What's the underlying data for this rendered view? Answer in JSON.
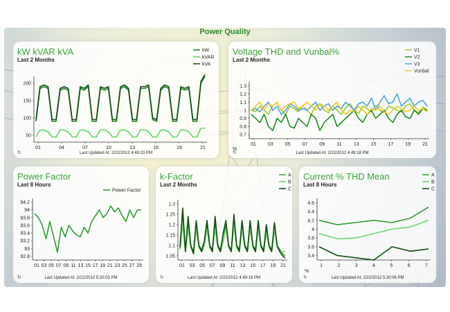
{
  "dashboard_title": "Power Quality",
  "panels": [
    {
      "title": "kW kVAR kVA",
      "subtitle": "Last 2 Months",
      "updated": "Last Updated At: 2/22/2012 4:49:23 PM",
      "chart_data": {
        "type": "line",
        "x_ticks": [
          "01",
          "04",
          "07",
          "10",
          "13",
          "16",
          "19",
          "21"
        ],
        "y_ticks": [
          "50",
          "100",
          "150",
          "200"
        ],
        "ylim": [
          30,
          220
        ],
        "series": [
          {
            "name": "kW",
            "color": "#1f7a1f",
            "values": [
              90,
              185,
              190,
              185,
              90,
              90,
              180,
              185,
              180,
              90,
              90,
              185,
              180,
              190,
              90,
              90,
              185,
              180,
              185,
              90,
              90,
              185,
              190,
              180,
              90,
              90,
              185,
              185,
              190,
              95,
              90,
              180,
              190,
              185,
              90,
              90,
              185,
              180,
              185,
              90,
              90,
              200,
              220
            ]
          },
          {
            "name": "kVAR",
            "color": "#5cd65c",
            "values": [
              45,
              65,
              65,
              60,
              45,
              45,
              65,
              65,
              60,
              45,
              45,
              65,
              65,
              60,
              45,
              45,
              65,
              65,
              60,
              45,
              45,
              65,
              65,
              60,
              45,
              45,
              65,
              65,
              60,
              45,
              45,
              65,
              65,
              60,
              45,
              45,
              65,
              65,
              60,
              45,
              45,
              70,
              70
            ]
          },
          {
            "name": "kVA",
            "color": "#0d4d0d",
            "values": [
              95,
              190,
              195,
              190,
              95,
              95,
              185,
              190,
              185,
              95,
              95,
              190,
              185,
              195,
              95,
              95,
              190,
              185,
              190,
              95,
              95,
              190,
              195,
              185,
              95,
              95,
              190,
              190,
              195,
              100,
              95,
              185,
              195,
              190,
              95,
              95,
              190,
              185,
              190,
              95,
              95,
              205,
              225
            ]
          }
        ]
      }
    },
    {
      "title": "Voltage THD and Vunbal%",
      "subtitle": "Last 2 Months",
      "updated": "Last Updated At: 2/22/2012 4:49:18 PM",
      "unit": "%",
      "chart_data": {
        "type": "line",
        "x_ticks": [
          "01",
          "03",
          "05",
          "07",
          "09",
          "11",
          "13",
          "15",
          "17",
          "19",
          "21"
        ],
        "y_ticks": [
          "0.7",
          "0.8",
          "0.9",
          "1",
          "1.1",
          "1.2",
          "1.3"
        ],
        "ylim": [
          0.65,
          1.35
        ],
        "series": [
          {
            "name": "V1",
            "color": "#9ccc2a",
            "values": [
              1.0,
              0.98,
              1.05,
              1.0,
              0.95,
              1.05,
              1.1,
              1.0,
              0.95,
              1.05,
              1.02,
              0.98,
              1.06,
              1.0,
              0.95,
              1.05,
              1.08,
              1.0,
              0.97,
              1.05,
              1.0,
              0.95,
              1.03,
              1.08,
              1.0,
              0.96,
              1.05,
              1.02,
              0.98,
              1.06,
              1.0,
              0.97,
              1.05,
              1.03,
              1.0,
              0.98,
              1.05,
              1.08,
              1.0,
              0.97,
              1.04,
              1.0
            ]
          },
          {
            "name": "V2",
            "color": "#1e8c1e",
            "values": [
              0.95,
              0.9,
              0.85,
              0.95,
              0.8,
              0.75,
              0.9,
              0.85,
              0.95,
              0.8,
              0.78,
              0.9,
              0.85,
              0.8,
              0.95,
              0.9,
              0.75,
              0.85,
              0.9,
              0.95,
              0.8,
              0.85,
              0.9,
              0.95,
              1.0,
              0.9,
              0.85,
              0.95,
              1.0,
              0.9,
              0.95,
              1.0,
              0.9,
              0.85,
              0.95,
              1.0,
              0.92,
              0.9,
              1.0,
              0.95,
              1.02,
              1.0
            ]
          },
          {
            "name": "V3",
            "color": "#4aa3e0",
            "values": [
              1.0,
              1.02,
              0.98,
              1.05,
              1.1,
              1.0,
              1.05,
              0.95,
              1.0,
              1.08,
              1.05,
              1.0,
              1.02,
              1.0,
              1.05,
              1.1,
              1.0,
              1.05,
              1.08,
              1.0,
              1.05,
              1.02,
              1.1,
              1.05,
              1.0,
              1.08,
              1.1,
              1.05,
              1.15,
              1.0,
              1.1,
              1.18,
              1.08,
              1.1,
              1.2,
              1.05,
              1.1,
              1.15,
              1.05,
              1.1,
              1.12,
              1.05
            ]
          },
          {
            "name": "Vunbal",
            "color": "#f2c81e",
            "values": [
              1.0,
              1.05,
              1.1,
              1.0,
              1.08,
              1.05,
              1.1,
              1.0,
              1.05,
              1.08,
              1.1,
              1.02,
              1.05,
              1.1,
              1.05,
              1.0,
              1.08,
              1.05,
              1.0,
              1.05,
              1.1,
              1.0,
              0.95,
              1.0,
              0.98,
              1.05,
              1.0,
              0.95,
              1.02,
              1.0,
              1.05,
              0.98,
              0.95,
              1.0,
              1.05,
              1.02,
              0.98,
              1.0,
              1.05,
              1.0,
              1.02,
              0.98
            ]
          }
        ]
      }
    },
    {
      "title": "Power Factor",
      "subtitle": "Last 8 Hours",
      "updated": "Last Updated At: 2/22/2012 5:20:03 PM",
      "chart_data": {
        "type": "line",
        "x_ticks": [
          "01",
          "03",
          "05",
          "07",
          "09",
          "11",
          "13",
          "15",
          "17",
          "19",
          "21",
          "23",
          "25",
          "27",
          "29"
        ],
        "y_ticks": [
          "92.8",
          "93",
          "93.2",
          "93.4",
          "93.6",
          "93.8",
          "94",
          "94.2"
        ],
        "ylim": [
          92.7,
          94.3
        ],
        "series": [
          {
            "name": "Power Factor",
            "color": "#2e9e2e",
            "values": [
              93.9,
              93.8,
              93.6,
              93.25,
              93.7,
              93.3,
              92.9,
              93.55,
              93.3,
              93.6,
              93.45,
              93.35,
              93.3,
              93.55,
              93.4,
              93.7,
              93.85,
              94.0,
              93.8,
              93.9,
              94.1,
              93.95,
              94.05,
              93.85,
              93.7,
              94.0,
              93.8,
              94.0,
              94.0
            ]
          }
        ]
      }
    },
    {
      "title": "k-Factor",
      "subtitle": "Last 2 Months",
      "updated": "Last Updated At: 2/22/2012 4:49:19 PM",
      "chart_data": {
        "type": "line",
        "x_ticks": [
          "01",
          "03",
          "05",
          "07",
          "09",
          "11",
          "13",
          "15",
          "17",
          "19",
          "21"
        ],
        "y_ticks": [
          "1.05",
          "1.1",
          "1.15",
          "1.2",
          "1.25",
          "1.3"
        ],
        "ylim": [
          1.03,
          1.32
        ],
        "series": [
          {
            "name": "A",
            "color": "#2e9e2e",
            "values": [
              1.1,
              1.25,
              1.08,
              1.2,
              1.1,
              1.07,
              1.2,
              1.1,
              1.08,
              1.12,
              1.2,
              1.1,
              1.08,
              1.2,
              1.1,
              1.08,
              1.15,
              1.2,
              1.1,
              1.08,
              1.22,
              1.1,
              1.08,
              1.2,
              1.1,
              1.08,
              1.2,
              1.1,
              1.08,
              1.2,
              1.1,
              1.08,
              1.18,
              1.1,
              1.08,
              1.2,
              1.1,
              1.08,
              1.06,
              1.05
            ]
          },
          {
            "name": "B",
            "color": "#6cd66c",
            "values": [
              1.08,
              1.2,
              1.07,
              1.18,
              1.09,
              1.06,
              1.18,
              1.09,
              1.07,
              1.1,
              1.18,
              1.09,
              1.07,
              1.18,
              1.09,
              1.07,
              1.12,
              1.18,
              1.09,
              1.07,
              1.2,
              1.09,
              1.07,
              1.18,
              1.09,
              1.07,
              1.18,
              1.09,
              1.07,
              1.18,
              1.09,
              1.07,
              1.16,
              1.09,
              1.07,
              1.18,
              1.09,
              1.07,
              1.07,
              1.07
            ]
          },
          {
            "name": "C",
            "color": "#0d4d0d",
            "values": [
              1.09,
              1.28,
              1.07,
              1.24,
              1.1,
              1.06,
              1.22,
              1.1,
              1.07,
              1.12,
              1.22,
              1.1,
              1.07,
              1.24,
              1.1,
              1.07,
              1.16,
              1.22,
              1.1,
              1.07,
              1.25,
              1.1,
              1.07,
              1.22,
              1.1,
              1.07,
              1.22,
              1.1,
              1.07,
              1.22,
              1.1,
              1.07,
              1.2,
              1.1,
              1.07,
              1.21,
              1.1,
              1.07,
              1.05,
              1.04
            ]
          }
        ]
      }
    },
    {
      "title": "Current % THD Mean",
      "subtitle": "Last 8 Hours",
      "updated": "Last Updated At: 2/22/2012 5:20:06 PM",
      "unit": "%",
      "chart_data": {
        "type": "line",
        "x_ticks": [
          "1",
          "2",
          "3",
          "4",
          "5",
          "6",
          "7"
        ],
        "y_ticks": [
          "3.4",
          "3.6",
          "3.8",
          "4",
          "4.2",
          "4.4",
          "4.6"
        ],
        "ylim": [
          3.3,
          4.7
        ],
        "series": [
          {
            "name": "A",
            "color": "#2e9e2e",
            "values": [
              4.2,
              4.1,
              4.15,
              4.2,
              4.15,
              4.25,
              4.5
            ]
          },
          {
            "name": "B",
            "color": "#6cd66c",
            "values": [
              3.9,
              3.78,
              3.8,
              3.9,
              4.0,
              4.05,
              4.2
            ]
          },
          {
            "name": "C",
            "color": "#0d4d0d",
            "values": [
              3.6,
              3.4,
              3.35,
              3.3,
              3.6,
              3.5,
              3.55
            ]
          }
        ]
      }
    }
  ]
}
